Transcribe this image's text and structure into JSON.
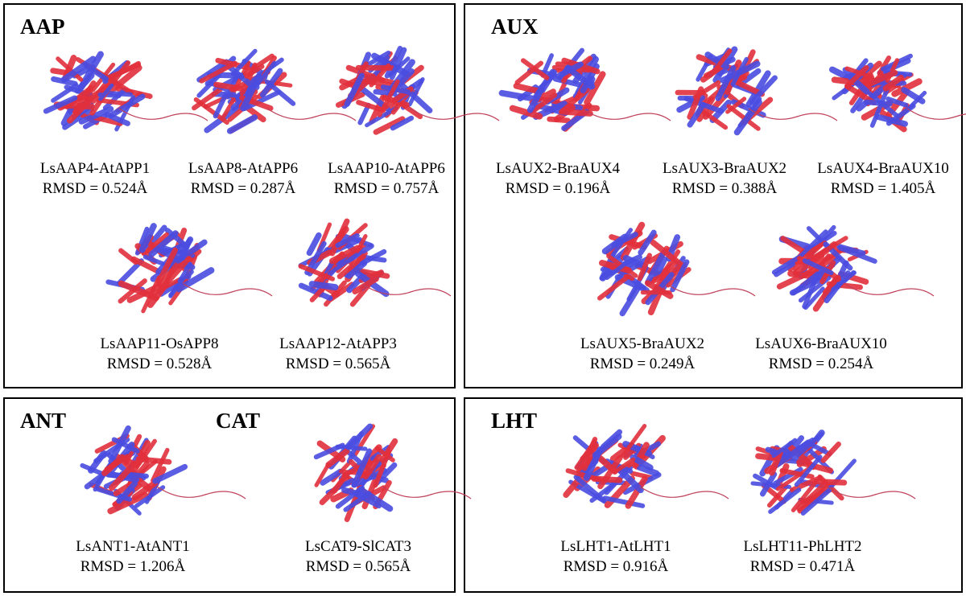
{
  "panels": [
    {
      "groups": [
        {
          "title": "AAP",
          "items": [
            {
              "name": "LsAAP4-AtAPP1",
              "rmsd": "RMSD = 0.524Å"
            },
            {
              "name": "LsAAP8-AtAPP6",
              "rmsd": "RMSD = 0.287Å"
            },
            {
              "name": "LsAAP10-AtAPP6",
              "rmsd": "RMSD = 0.757Å"
            },
            {
              "name": "LsAAP11-OsAPP8",
              "rmsd": "RMSD = 0.528Å"
            },
            {
              "name": "LsAAP12-AtAPP3",
              "rmsd": "RMSD = 0.565Å"
            }
          ]
        }
      ]
    },
    {
      "groups": [
        {
          "title": "AUX",
          "items": [
            {
              "name": "LsAUX2-BraAUX4",
              "rmsd": "RMSD = 0.196Å"
            },
            {
              "name": "LsAUX3-BraAUX2",
              "rmsd": "RMSD = 0.388Å"
            },
            {
              "name": "LsAUX4-BraAUX10",
              "rmsd": "RMSD = 1.405Å"
            },
            {
              "name": "LsAUX5-BraAUX2",
              "rmsd": "RMSD = 0.249Å"
            },
            {
              "name": "LsAUX6-BraAUX10",
              "rmsd": "RMSD = 0.254Å"
            }
          ]
        }
      ]
    },
    {
      "groups": [
        {
          "title": "ANT",
          "items": [
            {
              "name": "LsANT1-AtANT1",
              "rmsd": "RMSD = 1.206Å"
            }
          ]
        },
        {
          "title": "CAT",
          "items": [
            {
              "name": "LsCAT9-SlCAT3",
              "rmsd": "RMSD = 0.565Å"
            }
          ]
        }
      ]
    },
    {
      "groups": [
        {
          "title": "LHT",
          "items": [
            {
              "name": "LsLHT1-AtLHT1",
              "rmsd": "RMSD = 0.916Å"
            },
            {
              "name": "LsLHT11-PhLHT2",
              "rmsd": "RMSD = 0.471Å"
            }
          ]
        }
      ]
    }
  ]
}
